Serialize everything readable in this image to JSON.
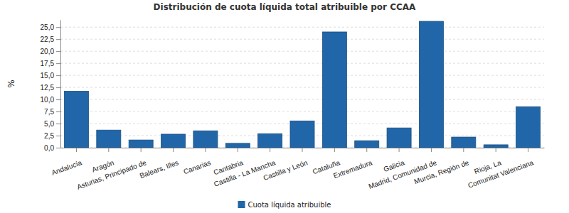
{
  "chart_data": {
    "type": "bar",
    "title": "Distribución de cuota líquida total atribuible por CCAA",
    "y_label": "%",
    "categories": [
      "Andalucía",
      "Aragón",
      "Asturias, Principado de",
      "Balears, Illes",
      "Canarias",
      "Cantabria",
      "Castilla - La Mancha",
      "Castilla y León",
      "Cataluña",
      "Extremadura",
      "Galicia",
      "Madrid, Comunidad de",
      "Murcia, Región de",
      "Rioja, La",
      "Comunitat Valenciana"
    ],
    "series": [
      {
        "name": "Cuota líquida atribuible",
        "color": "#2166a8",
        "values": [
          11.7,
          3.65,
          1.6,
          2.8,
          3.5,
          0.9,
          2.9,
          5.55,
          24.0,
          1.45,
          4.1,
          26.2,
          2.2,
          0.6,
          8.5
        ]
      }
    ],
    "ylim": [
      0,
      26.5
    ],
    "yticks": [
      {
        "value": 0,
        "label": "0,0"
      },
      {
        "value": 2.5,
        "label": "2,5"
      },
      {
        "value": 5,
        "label": "5,0"
      },
      {
        "value": 7.5,
        "label": "7,5"
      },
      {
        "value": 10,
        "label": "10,0"
      },
      {
        "value": 12.5,
        "label": "12,5"
      },
      {
        "value": 15,
        "label": "15,0"
      },
      {
        "value": 17.5,
        "label": "17,5"
      },
      {
        "value": 20,
        "label": "20,0"
      },
      {
        "value": 22.5,
        "label": "22,5"
      },
      {
        "value": 25,
        "label": "25,0"
      }
    ],
    "grid": true,
    "legend": "bottom"
  }
}
